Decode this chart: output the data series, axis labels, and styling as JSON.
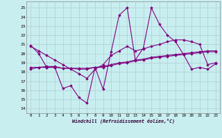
{
  "title": "",
  "xlabel": "Windchill (Refroidissement éolien,°C)",
  "ylabel": "",
  "bg_color": "#c8eef0",
  "grid_color": "#b0cdd0",
  "line_color": "#800080",
  "xlim": [
    -0.5,
    23.5
  ],
  "ylim": [
    13.5,
    25.7
  ],
  "yticks": [
    14,
    15,
    16,
    17,
    18,
    19,
    20,
    21,
    22,
    23,
    24,
    25
  ],
  "xticks": [
    0,
    1,
    2,
    3,
    4,
    5,
    6,
    7,
    8,
    9,
    10,
    11,
    12,
    13,
    14,
    15,
    16,
    17,
    18,
    19,
    20,
    21,
    22,
    23
  ],
  "series": [
    {
      "x": [
        0,
        1,
        2,
        3,
        4,
        5,
        6,
        7,
        8,
        9,
        10,
        11,
        12,
        13,
        14,
        15,
        16,
        17,
        18,
        19,
        20,
        21,
        22,
        23
      ],
      "y": [
        20.9,
        20.0,
        18.5,
        18.5,
        16.2,
        16.5,
        15.2,
        14.6,
        18.5,
        16.1,
        20.2,
        24.2,
        25.0,
        19.3,
        20.6,
        25.0,
        23.2,
        22.0,
        21.3,
        19.9,
        18.3,
        18.5,
        18.3,
        18.9
      ]
    },
    {
      "x": [
        0,
        1,
        2,
        3,
        4,
        5,
        6,
        7,
        8,
        9,
        10,
        11,
        12,
        13,
        14,
        15,
        16,
        17,
        18,
        19,
        20,
        21,
        22,
        23
      ],
      "y": [
        18.5,
        18.5,
        18.5,
        18.5,
        18.4,
        18.4,
        18.4,
        18.4,
        18.5,
        18.5,
        18.7,
        18.9,
        19.0,
        19.2,
        19.3,
        19.5,
        19.6,
        19.7,
        19.8,
        19.9,
        20.0,
        20.1,
        20.2,
        20.2
      ]
    },
    {
      "x": [
        0,
        1,
        2,
        3,
        4,
        5,
        6,
        7,
        8,
        9,
        10,
        11,
        12,
        13,
        14,
        15,
        16,
        17,
        18,
        19,
        20,
        21,
        22,
        23
      ],
      "y": [
        18.3,
        18.5,
        18.6,
        18.6,
        18.4,
        18.4,
        18.3,
        18.3,
        18.5,
        18.6,
        18.8,
        19.0,
        19.1,
        19.3,
        19.4,
        19.6,
        19.7,
        19.8,
        19.9,
        20.0,
        20.1,
        20.2,
        20.3,
        20.3
      ]
    },
    {
      "x": [
        0,
        1,
        2,
        3,
        4,
        5,
        6,
        7,
        8,
        9,
        10,
        11,
        12,
        13,
        14,
        15,
        16,
        17,
        18,
        19,
        20,
        21,
        22,
        23
      ],
      "y": [
        20.8,
        20.3,
        19.8,
        19.3,
        18.8,
        18.3,
        17.8,
        17.3,
        18.3,
        18.8,
        19.8,
        20.3,
        20.8,
        20.3,
        20.5,
        20.8,
        21.0,
        21.3,
        21.5,
        21.5,
        21.3,
        21.0,
        18.8,
        19.0
      ]
    }
  ]
}
